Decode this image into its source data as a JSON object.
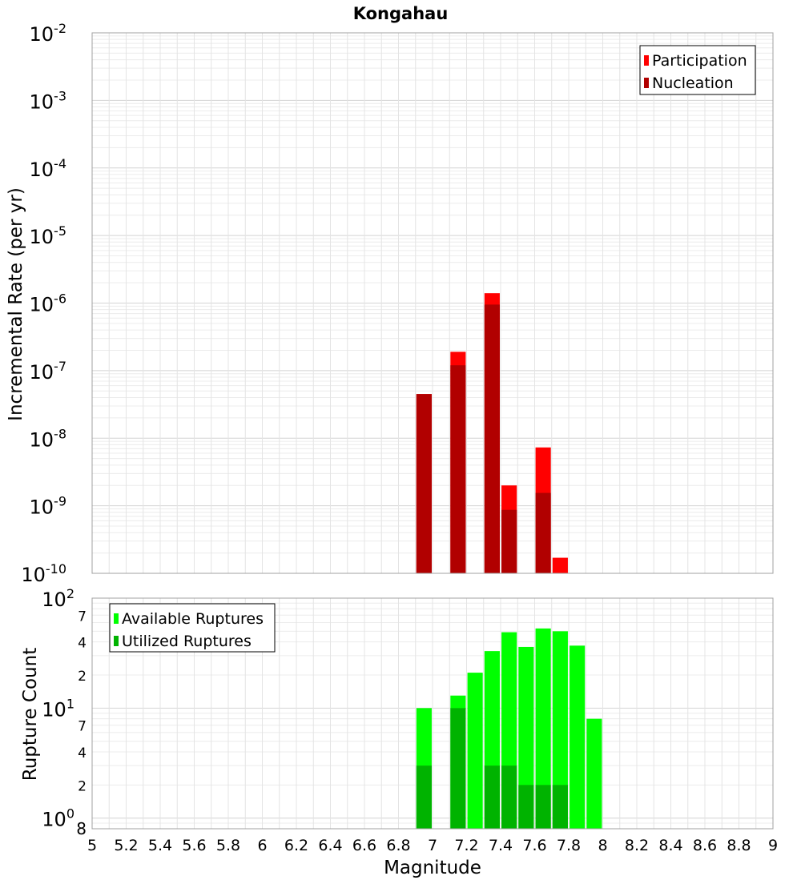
{
  "chart_data": [
    {
      "panel": "top",
      "type": "bar",
      "title": "Kongahau",
      "xlabel": "",
      "ylabel": "Incremental Rate (per yr)",
      "yscale": "log",
      "xlim": [
        5,
        9
      ],
      "ylim": [
        1e-10,
        0.01
      ],
      "grid": true,
      "legend_position": "top-right",
      "y_ticks": [
        {
          "value": 1e-10,
          "base": "10",
          "exp": "-10"
        },
        {
          "value": 1e-09,
          "base": "10",
          "exp": "-9"
        },
        {
          "value": 1e-08,
          "base": "10",
          "exp": "-8"
        },
        {
          "value": 1e-07,
          "base": "10",
          "exp": "-7"
        },
        {
          "value": 1e-06,
          "base": "10",
          "exp": "-6"
        },
        {
          "value": 1e-05,
          "base": "10",
          "exp": "-5"
        },
        {
          "value": 0.0001,
          "base": "10",
          "exp": "-4"
        },
        {
          "value": 0.001,
          "base": "10",
          "exp": "-3"
        },
        {
          "value": 0.01,
          "base": "10",
          "exp": "-2"
        }
      ],
      "bar_width": 0.09,
      "series": [
        {
          "name": "Participation",
          "color": "#ff0000",
          "points": [
            {
              "x": 6.95,
              "y": 4.5e-08
            },
            {
              "x": 7.15,
              "y": 1.9e-07
            },
            {
              "x": 7.35,
              "y": 1.4e-06
            },
            {
              "x": 7.45,
              "y": 2e-09
            },
            {
              "x": 7.65,
              "y": 7.3e-09
            },
            {
              "x": 7.75,
              "y": 1.7e-10
            }
          ]
        },
        {
          "name": "Nucleation",
          "color": "#b10000",
          "points": [
            {
              "x": 6.95,
              "y": 4.5e-08
            },
            {
              "x": 7.15,
              "y": 1.2e-07
            },
            {
              "x": 7.35,
              "y": 9.5e-07
            },
            {
              "x": 7.45,
              "y": 8.7e-10
            },
            {
              "x": 7.65,
              "y": 1.55e-09
            }
          ]
        }
      ]
    },
    {
      "panel": "bottom",
      "type": "bar",
      "title": "",
      "xlabel": "Magnitude",
      "ylabel": "Rupture Count",
      "yscale": "log",
      "xlim": [
        5,
        9
      ],
      "ylim": [
        0.8,
        100
      ],
      "grid": true,
      "legend_position": "top-left",
      "x_ticks": [
        "5",
        "5.2",
        "5.4",
        "5.6",
        "5.8",
        "6",
        "6.2",
        "6.4",
        "6.6",
        "6.8",
        "7",
        "7.2",
        "7.4",
        "7.6",
        "7.8",
        "8",
        "8.2",
        "8.4",
        "8.6",
        "8.8",
        "9"
      ],
      "y_ticks": [
        {
          "value": 1,
          "base": "10",
          "exp": "0"
        },
        {
          "value": 10,
          "base": "10",
          "exp": "1"
        },
        {
          "value": 100,
          "base": "10",
          "exp": "2"
        }
      ],
      "y_minor_labels": [
        {
          "value": 0.8,
          "label": "8"
        },
        {
          "value": 2,
          "label": "2"
        },
        {
          "value": 4,
          "label": "4"
        },
        {
          "value": 7,
          "label": "7"
        },
        {
          "value": 20,
          "label": "2"
        },
        {
          "value": 40,
          "label": "4"
        },
        {
          "value": 70,
          "label": "7"
        }
      ],
      "bar_width": 0.09,
      "series": [
        {
          "name": "Available Ruptures",
          "color": "#00ff00",
          "points": [
            {
              "x": 6.95,
              "y": 10
            },
            {
              "x": 7.15,
              "y": 13
            },
            {
              "x": 7.25,
              "y": 21
            },
            {
              "x": 7.35,
              "y": 33
            },
            {
              "x": 7.45,
              "y": 49
            },
            {
              "x": 7.55,
              "y": 36
            },
            {
              "x": 7.65,
              "y": 53
            },
            {
              "x": 7.75,
              "y": 50
            },
            {
              "x": 7.85,
              "y": 37
            },
            {
              "x": 7.95,
              "y": 8
            }
          ]
        },
        {
          "name": "Utilized Ruptures",
          "color": "#00b300",
          "points": [
            {
              "x": 6.95,
              "y": 3
            },
            {
              "x": 7.15,
              "y": 10
            },
            {
              "x": 7.35,
              "y": 3
            },
            {
              "x": 7.45,
              "y": 3
            },
            {
              "x": 7.55,
              "y": 2
            },
            {
              "x": 7.65,
              "y": 2
            },
            {
              "x": 7.75,
              "y": 2
            }
          ]
        }
      ]
    }
  ]
}
